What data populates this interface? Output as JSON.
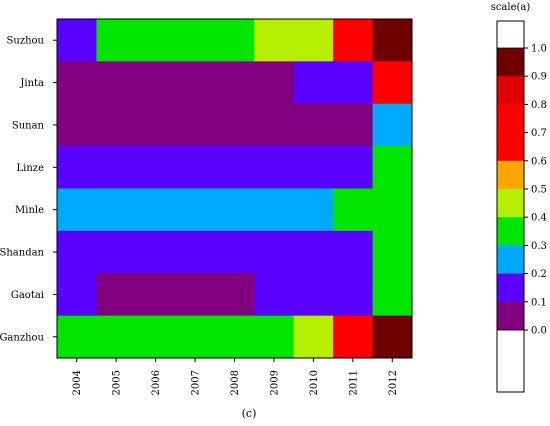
{
  "chart_data": {
    "type": "heatmap",
    "x": [
      "2004",
      "2005",
      "2006",
      "2007",
      "2008",
      "2009",
      "2010",
      "2011",
      "2012"
    ],
    "y": [
      "Suzhou",
      "Jinta",
      "Sunan",
      "Linze",
      "Minle",
      "Shandan",
      "Gaotai",
      "Ganzhou"
    ],
    "values": [
      [
        0.1,
        0.3,
        0.3,
        0.3,
        0.3,
        0.4,
        0.4,
        0.7,
        0.9
      ],
      [
        0.0,
        0.0,
        0.0,
        0.0,
        0.0,
        0.0,
        0.1,
        0.1,
        0.7
      ],
      [
        0.0,
        0.0,
        0.0,
        0.0,
        0.0,
        0.0,
        0.0,
        0.0,
        0.2
      ],
      [
        0.1,
        0.1,
        0.1,
        0.1,
        0.1,
        0.1,
        0.1,
        0.1,
        0.3
      ],
      [
        0.2,
        0.2,
        0.2,
        0.2,
        0.2,
        0.2,
        0.2,
        0.3,
        0.3
      ],
      [
        0.1,
        0.1,
        0.1,
        0.1,
        0.1,
        0.1,
        0.1,
        0.1,
        0.3
      ],
      [
        0.1,
        0.0,
        0.0,
        0.0,
        0.0,
        0.1,
        0.1,
        0.1,
        0.3
      ],
      [
        0.3,
        0.3,
        0.3,
        0.3,
        0.3,
        0.3,
        0.4,
        0.7,
        0.9
      ]
    ],
    "colorbar": {
      "title": "scale(a)",
      "ticks": [
        "1.0",
        "0.9",
        "0.8",
        "0.7",
        "0.6",
        "0.5",
        "0.4",
        "0.3",
        "0.2",
        "0.1",
        "0.0"
      ],
      "bands": [
        {
          "from": 0.9,
          "to": 1.0,
          "color": "#6e0000"
        },
        {
          "from": 0.8,
          "to": 0.9,
          "color": "#e00000"
        },
        {
          "from": 0.7,
          "to": 0.8,
          "color": "#ff0000"
        },
        {
          "from": 0.6,
          "to": 0.7,
          "color": "#ff0000"
        },
        {
          "from": 0.5,
          "to": 0.6,
          "color": "#ffa500"
        },
        {
          "from": 0.4,
          "to": 0.5,
          "color": "#b4f000"
        },
        {
          "from": 0.3,
          "to": 0.4,
          "color": "#00e600"
        },
        {
          "from": 0.2,
          "to": 0.3,
          "color": "#00aaff"
        },
        {
          "from": 0.1,
          "to": 0.2,
          "color": "#5a00ff"
        },
        {
          "from": 0.0,
          "to": 0.1,
          "color": "#800080"
        }
      ]
    },
    "colors": {
      "0.0": "#800080",
      "0.1": "#5a00ff",
      "0.2": "#00aaff",
      "0.3": "#00e600",
      "0.4": "#b4f000",
      "0.7": "#ff0000",
      "0.9": "#6e0000"
    },
    "caption": "(c)"
  }
}
